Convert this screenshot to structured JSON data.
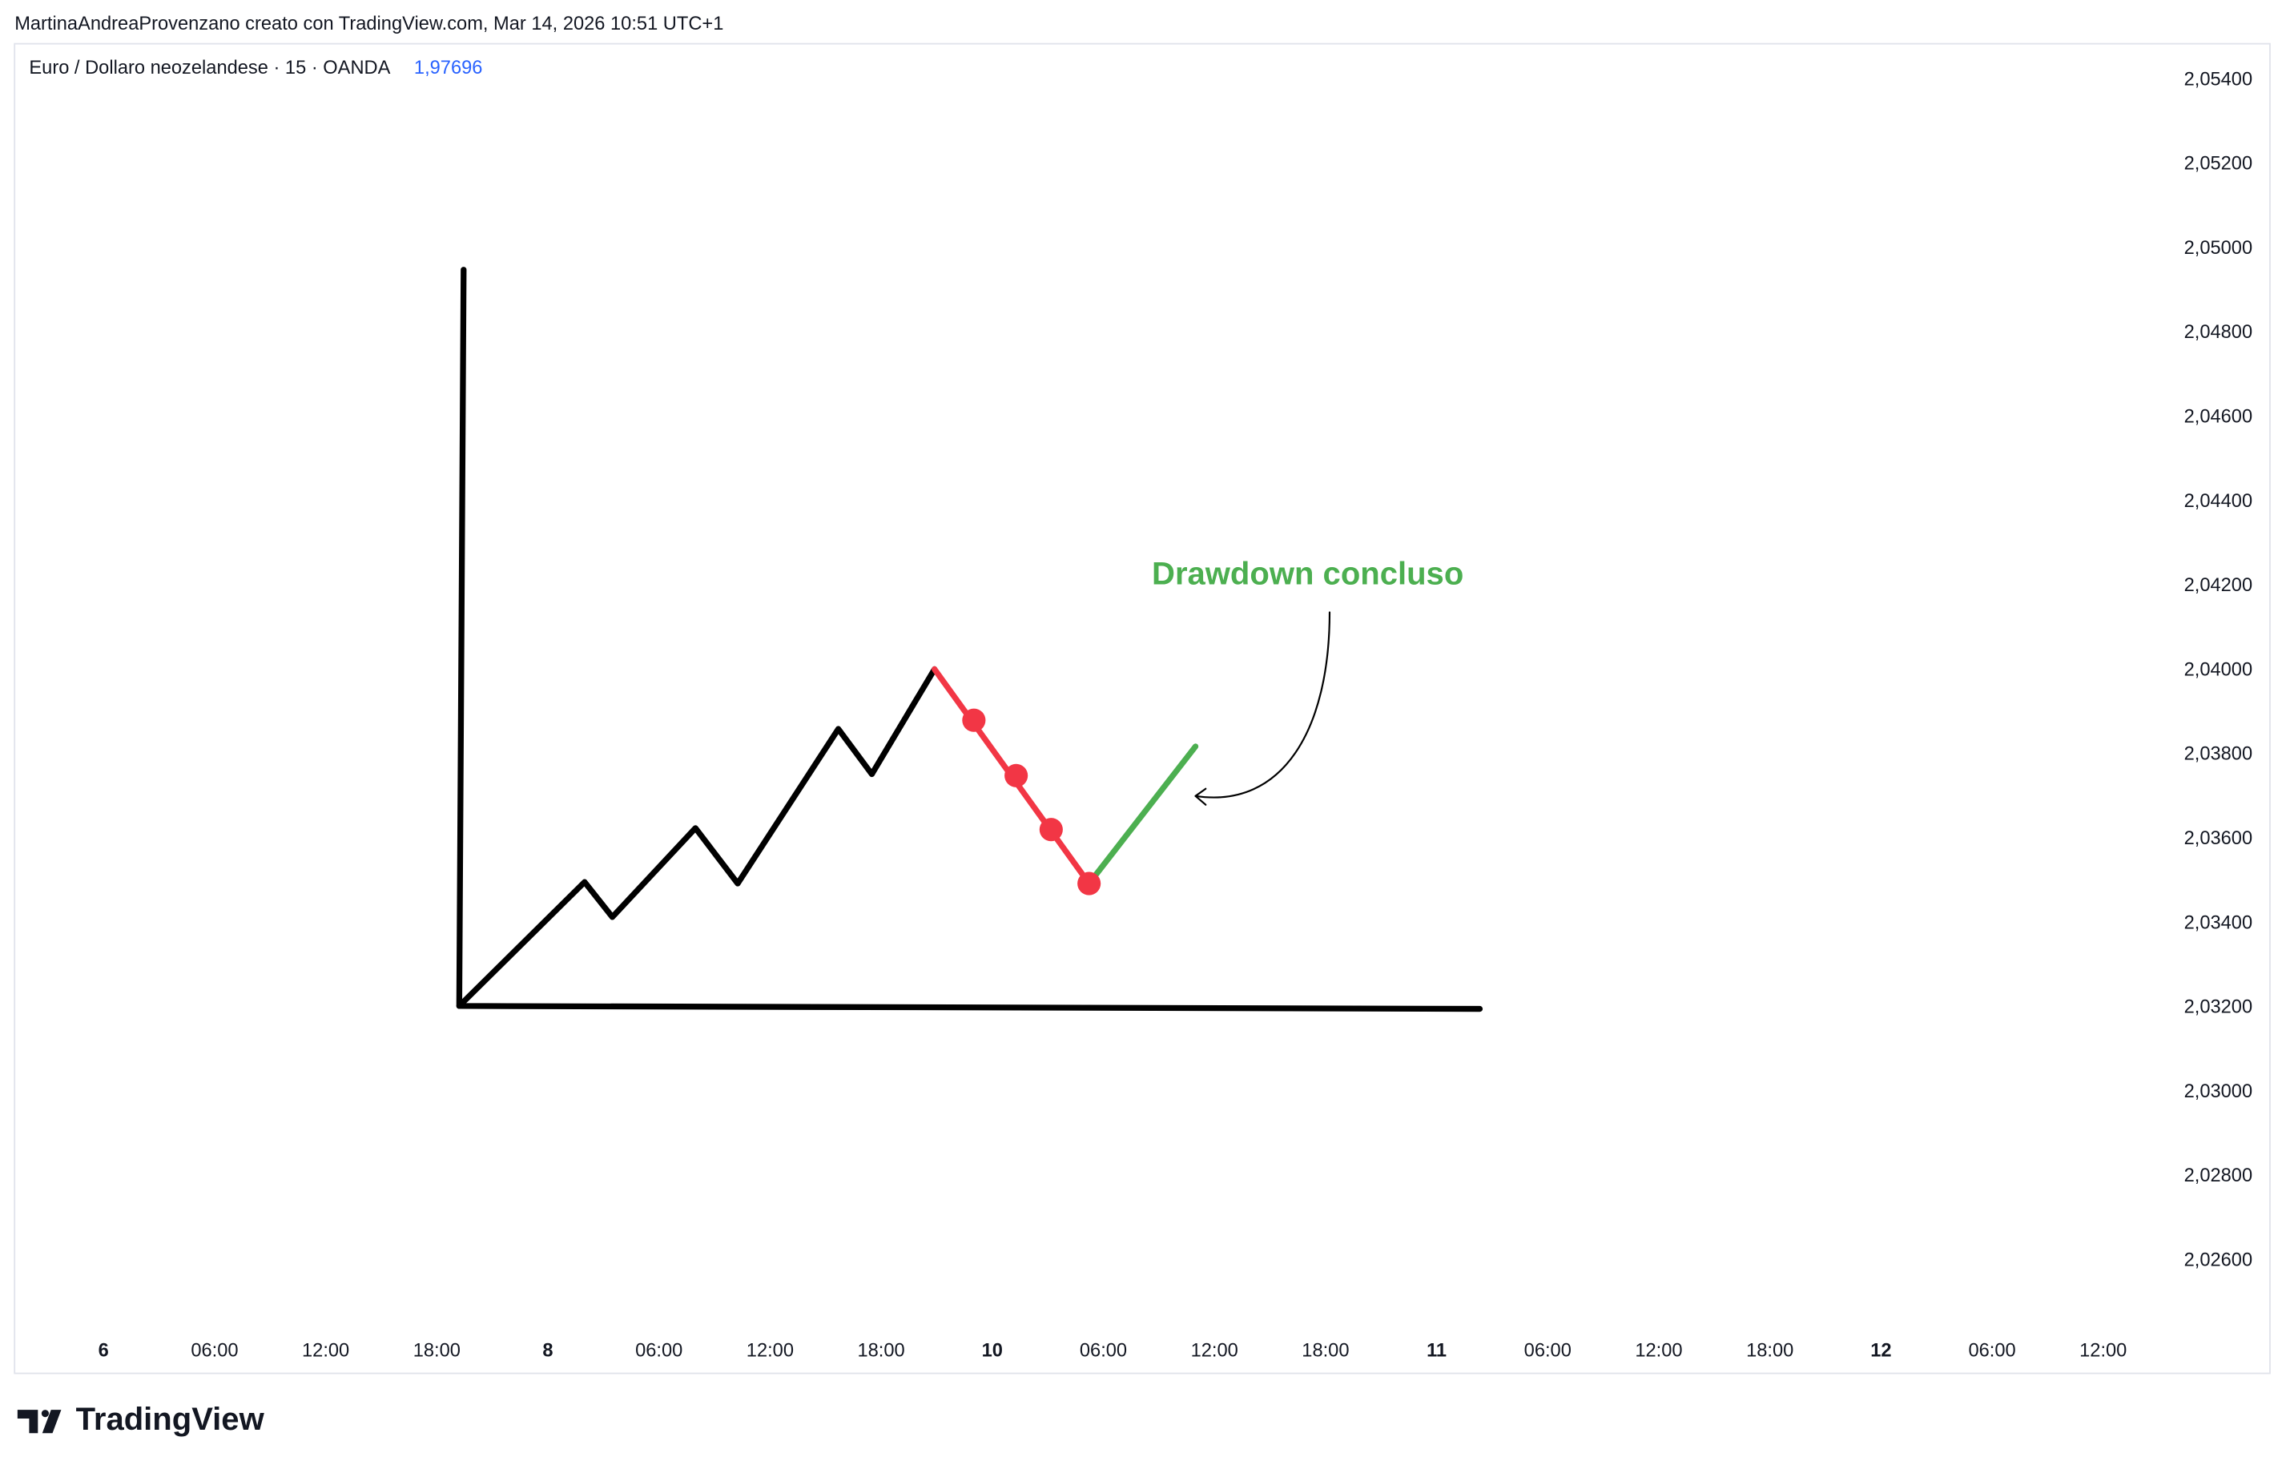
{
  "header": {
    "attribution": "MartinaAndreaProvenzano creato con TradingView.com, Mar 14, 2026 10:51 UTC+1"
  },
  "legend": {
    "symbol": "Euro / Dollaro neozelandese · 15 · OANDA",
    "price": "1,97696"
  },
  "price_axis": {
    "ticks": [
      "2,05400",
      "2,05200",
      "2,05000",
      "2,04800",
      "2,04600",
      "2,04400",
      "2,04200",
      "2,04000",
      "2,03800",
      "2,03600",
      "2,03400",
      "2,03200",
      "2,03000",
      "2,02800",
      "2,02600"
    ]
  },
  "time_axis": {
    "labels": [
      "6",
      "06:00",
      "12:00",
      "18:00",
      "8",
      "06:00",
      "12:00",
      "18:00",
      "10",
      "06:00",
      "12:00",
      "18:00",
      "11",
      "06:00",
      "12:00",
      "18:00",
      "12",
      "06:00",
      "12:00"
    ]
  },
  "annotation": {
    "text": "Drawdown concluso"
  },
  "footer": {
    "logo": "TradingView"
  }
}
